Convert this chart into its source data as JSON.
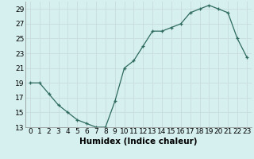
{
  "x": [
    0,
    1,
    2,
    3,
    4,
    5,
    6,
    7,
    8,
    9,
    10,
    11,
    12,
    13,
    14,
    15,
    16,
    17,
    18,
    19,
    20,
    21,
    22,
    23
  ],
  "y": [
    19,
    19,
    17.5,
    16,
    15,
    14,
    13.5,
    13,
    13,
    16.5,
    21,
    22,
    24,
    26,
    26,
    26.5,
    27,
    28.5,
    29,
    29.5,
    29,
    28.5,
    25,
    22.5
  ],
  "line_color": "#2e6b5e",
  "marker": "+",
  "marker_size": 3,
  "bg_color": "#d6efef",
  "grid_color": "#c8dede",
  "ylim": [
    13,
    30
  ],
  "yticks": [
    13,
    15,
    17,
    19,
    21,
    23,
    25,
    27,
    29
  ],
  "xticks": [
    0,
    1,
    2,
    3,
    4,
    5,
    6,
    7,
    8,
    9,
    10,
    11,
    12,
    13,
    14,
    15,
    16,
    17,
    18,
    19,
    20,
    21,
    22,
    23
  ],
  "xlabel": "Humidex (Indice chaleur)",
  "tick_fontsize": 6.5,
  "xlabel_fontsize": 7.5
}
